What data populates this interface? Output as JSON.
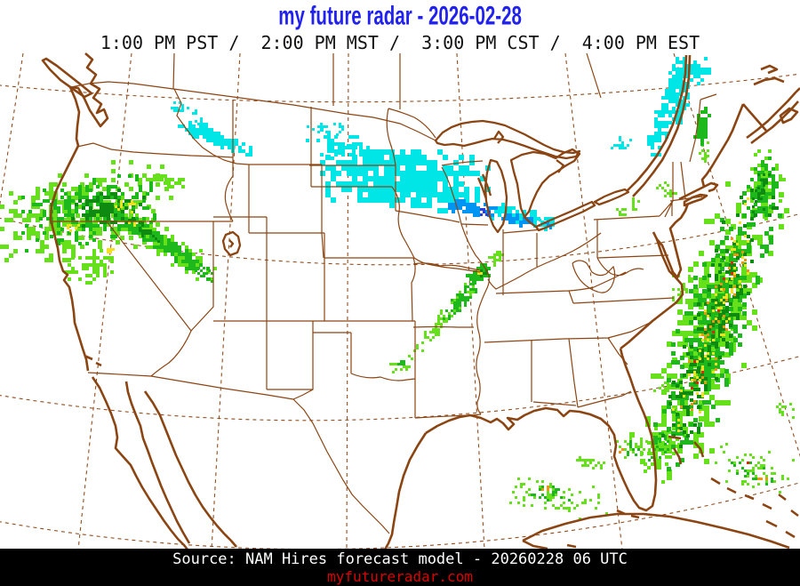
{
  "header": {
    "title": "my future radar - 2026-02-28",
    "times_line": "1:00 PM PST /  2:00 PM MST /  3:00 PM CST /  4:00 PM EST"
  },
  "footer": {
    "source_line": "Source: NAM Hires forecast model - 20260228 06 UTC",
    "site_line": "myfutureradar.com"
  },
  "colors": {
    "title_blue": "#2222EE",
    "text_black": "#111111",
    "footer_bg": "#000000",
    "footer_text": "#FFFFFF",
    "site_red": "#DD0000",
    "map_line": "#8B4513",
    "background": "#FFFFFF",
    "palette": {
      "g1": "#66E01A",
      "g2": "#1CB81C",
      "g3": "#0E8A10",
      "y": "#F5DE1B",
      "o": "#F0930F",
      "r": "#E82010",
      "c": "#00E6E6",
      "b": "#0095F2",
      "b2": "#2A3EDC"
    }
  },
  "radar": {
    "format": "[color, cx, cy, rx, ry, rot_deg, count, cell_px]",
    "seed": 1234,
    "regions": [
      [
        "g1",
        92,
        242,
        108,
        54,
        -10,
        300,
        5
      ],
      [
        "g2",
        100,
        238,
        85,
        40,
        -10,
        220,
        4
      ],
      [
        "g3",
        120,
        234,
        46,
        20,
        -12,
        80,
        4
      ],
      [
        "g1",
        100,
        300,
        32,
        20,
        0,
        60,
        4
      ],
      [
        "g1",
        188,
        205,
        26,
        12,
        15,
        40,
        4
      ],
      [
        "y",
        140,
        233,
        16,
        9,
        0,
        12,
        3
      ],
      [
        "y",
        80,
        255,
        10,
        6,
        0,
        6,
        3
      ],
      [
        "y",
        122,
        280,
        8,
        5,
        0,
        5,
        3
      ],
      [
        "g1",
        180,
        271,
        76,
        16,
        33,
        170,
        4
      ],
      [
        "g2",
        182,
        273,
        68,
        10,
        33,
        120,
        4
      ],
      [
        "g3",
        160,
        258,
        25,
        6,
        33,
        26,
        3
      ],
      [
        "g2",
        228,
        306,
        18,
        6,
        38,
        24,
        3
      ],
      [
        "y",
        150,
        250,
        6,
        4,
        0,
        4,
        3
      ],
      [
        "c",
        243,
        155,
        46,
        9,
        23,
        120,
        4
      ],
      [
        "c",
        205,
        122,
        18,
        6,
        15,
        20,
        3
      ],
      [
        "c",
        226,
        139,
        12,
        5,
        20,
        12,
        3
      ],
      [
        "c",
        455,
        200,
        100,
        36,
        7,
        430,
        6
      ],
      [
        "c",
        385,
        165,
        45,
        16,
        10,
        60,
        4
      ],
      [
        "c",
        370,
        145,
        25,
        8,
        5,
        18,
        3
      ],
      [
        "c",
        590,
        243,
        38,
        11,
        10,
        80,
        4
      ],
      [
        "b",
        535,
        236,
        32,
        9,
        8,
        60,
        4
      ],
      [
        "b",
        582,
        248,
        22,
        6,
        10,
        30,
        4
      ],
      [
        "b2",
        545,
        240,
        10,
        4,
        8,
        7,
        3
      ],
      [
        "c",
        612,
        252,
        14,
        5,
        5,
        12,
        3
      ],
      [
        "b",
        614,
        253,
        8,
        3,
        5,
        6,
        3
      ],
      [
        "g1",
        498,
        360,
        62,
        10,
        -50,
        80,
        3
      ],
      [
        "g2",
        520,
        336,
        40,
        8,
        -50,
        55,
        3
      ],
      [
        "g2",
        540,
        308,
        14,
        9,
        -40,
        36,
        4
      ],
      [
        "g3",
        542,
        306,
        8,
        5,
        -40,
        10,
        3
      ],
      [
        "y",
        540,
        306,
        5,
        3,
        0,
        4,
        3
      ],
      [
        "g1",
        560,
        290,
        14,
        8,
        -30,
        22,
        3
      ],
      [
        "g1",
        450,
        412,
        12,
        8,
        0,
        13,
        3
      ],
      [
        "g2",
        452,
        408,
        6,
        4,
        0,
        5,
        3
      ],
      [
        "c",
        762,
        103,
        16,
        44,
        8,
        150,
        4
      ],
      [
        "c",
        742,
        148,
        10,
        28,
        12,
        55,
        4
      ],
      [
        "c",
        782,
        83,
        18,
        18,
        0,
        55,
        4
      ],
      [
        "c",
        700,
        163,
        12,
        8,
        0,
        16,
        3
      ],
      [
        "g2",
        790,
        142,
        7,
        26,
        3,
        55,
        4
      ],
      [
        "g1",
        792,
        170,
        6,
        12,
        3,
        16,
        3
      ],
      [
        "g1",
        748,
        214,
        14,
        10,
        0,
        14,
        3
      ],
      [
        "g1",
        716,
        230,
        10,
        8,
        0,
        9,
        3
      ],
      [
        "g1",
        700,
        240,
        10,
        6,
        0,
        8,
        3
      ],
      [
        "g1",
        766,
        325,
        12,
        25,
        10,
        20,
        3
      ],
      [
        "g1",
        800,
        368,
        185,
        50,
        108,
        380,
        6
      ],
      [
        "g2",
        802,
        366,
        175,
        40,
        108,
        320,
        5
      ],
      [
        "g3",
        805,
        362,
        165,
        28,
        108,
        190,
        4
      ],
      [
        "y",
        806,
        360,
        160,
        22,
        108,
        75,
        3
      ],
      [
        "o",
        807,
        358,
        155,
        18,
        108,
        38,
        3
      ],
      [
        "r",
        808,
        356,
        150,
        12,
        108,
        9,
        3
      ],
      [
        "g1",
        860,
        210,
        45,
        22,
        100,
        80,
        4
      ],
      [
        "g2",
        858,
        212,
        40,
        16,
        100,
        95,
        4
      ],
      [
        "g3",
        856,
        215,
        25,
        8,
        100,
        26,
        3
      ],
      [
        "g1",
        742,
        505,
        40,
        22,
        115,
        60,
        4
      ],
      [
        "g2",
        745,
        500,
        25,
        10,
        115,
        22,
        3
      ],
      [
        "g1",
        752,
        432,
        22,
        14,
        0,
        26,
        3
      ],
      [
        "g1",
        628,
        560,
        58,
        20,
        8,
        70,
        3
      ],
      [
        "g2",
        620,
        556,
        30,
        10,
        8,
        20,
        3
      ],
      [
        "o",
        612,
        550,
        6,
        3,
        0,
        3,
        3
      ],
      [
        "g1",
        660,
        520,
        25,
        12,
        20,
        22,
        3
      ],
      [
        "g1",
        712,
        502,
        26,
        16,
        10,
        34,
        3
      ],
      [
        "g2",
        708,
        505,
        12,
        8,
        0,
        10,
        3
      ],
      [
        "o",
        701,
        507,
        4,
        3,
        0,
        2,
        3
      ],
      [
        "g1",
        848,
        528,
        48,
        26,
        15,
        52,
        3
      ],
      [
        "g2",
        845,
        530,
        30,
        14,
        15,
        18,
        3
      ],
      [
        "g1",
        882,
        462,
        14,
        10,
        0,
        12,
        3
      ],
      [
        "o",
        858,
        540,
        5,
        3,
        0,
        3,
        3
      ],
      [
        "r",
        840,
        520,
        3,
        2,
        0,
        2,
        3
      ]
    ]
  }
}
